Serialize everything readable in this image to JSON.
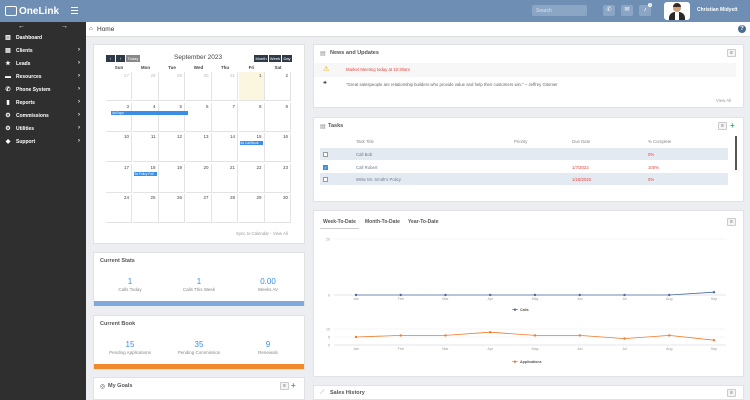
{
  "app": {
    "name": "OneLink"
  },
  "topbar": {
    "search_placeholder": "Search",
    "notification_count": "1",
    "user_name": "Christian Midyett"
  },
  "sidebar": {
    "items": [
      {
        "label": "Dashboard",
        "icon": "dashboard-icon",
        "glyph": "▥"
      },
      {
        "label": "Clients",
        "icon": "clients-icon",
        "glyph": "▤"
      },
      {
        "label": "Leads",
        "icon": "star-icon",
        "glyph": "★"
      },
      {
        "label": "Resources",
        "icon": "folder-icon",
        "glyph": "▬"
      },
      {
        "label": "Phone System",
        "icon": "phone-icon",
        "glyph": "✆"
      },
      {
        "label": "Reports",
        "icon": "reports-icon",
        "glyph": "▮"
      },
      {
        "label": "Commissions",
        "icon": "commissions-icon",
        "glyph": "⚙"
      },
      {
        "label": "Utilities",
        "icon": "utilities-icon",
        "glyph": "⚙"
      },
      {
        "label": "Support",
        "icon": "support-icon",
        "glyph": "◆"
      }
    ]
  },
  "breadcrumb": {
    "home": "Home"
  },
  "calendar": {
    "today_label": "Today",
    "month_label": "September 2023",
    "views": [
      "Month",
      "Week",
      "Day"
    ],
    "weekdays": [
      "Sun",
      "Mon",
      "Tue",
      "Wed",
      "Thu",
      "Fri",
      "Sat"
    ],
    "weeks": [
      [
        [
          "27",
          true
        ],
        [
          "28",
          true
        ],
        [
          "29",
          true
        ],
        [
          "30",
          true
        ],
        [
          "31",
          true
        ],
        [
          "1",
          false
        ],
        [
          "2",
          false
        ]
      ],
      [
        [
          "3",
          false
        ],
        [
          "4",
          false
        ],
        [
          "5",
          false
        ],
        [
          "6",
          false
        ],
        [
          "7",
          false
        ],
        [
          "8",
          false
        ],
        [
          "9",
          false
        ]
      ],
      [
        [
          "10",
          false
        ],
        [
          "11",
          false
        ],
        [
          "12",
          false
        ],
        [
          "13",
          false
        ],
        [
          "14",
          false
        ],
        [
          "15",
          false
        ],
        [
          "16",
          false
        ]
      ],
      [
        [
          "17",
          false
        ],
        [
          "18",
          false
        ],
        [
          "19",
          false
        ],
        [
          "20",
          false
        ],
        [
          "21",
          false
        ],
        [
          "22",
          false
        ],
        [
          "23",
          false
        ]
      ],
      [
        [
          "24",
          false
        ],
        [
          "25",
          false
        ],
        [
          "26",
          false
        ],
        [
          "27",
          false
        ],
        [
          "28",
          false
        ],
        [
          "29",
          false
        ],
        [
          "30",
          false
        ]
      ]
    ],
    "events": [
      {
        "label": "4a Expo"
      },
      {
        "label": "6a Call Book"
      },
      {
        "label": "9a Policy Foll"
      }
    ],
    "sync_label": "Sync to Calendar",
    "view_all": "View All"
  },
  "current_stats": {
    "title": "Current Stats",
    "items": [
      {
        "value": "1",
        "label": "Calls Today"
      },
      {
        "value": "1",
        "label": "Calls This Week"
      },
      {
        "value": "0.00",
        "label": "Weeks AV"
      }
    ],
    "bar_color": "#7ea9d8"
  },
  "current_book": {
    "title": "Current Book",
    "items": [
      {
        "value": "15",
        "label": "Pending Applications"
      },
      {
        "value": "35",
        "label": "Pending Commission"
      },
      {
        "value": "9",
        "label": "Renewals"
      }
    ],
    "bar_color": "#f08a2c"
  },
  "my_goals": {
    "title": "My Goals"
  },
  "news": {
    "title": "News and Updates",
    "items": [
      {
        "text": "Market Meeting today at 10:30am",
        "color": "#e8453c",
        "icon": "warning-icon",
        "glyph": "⚠"
      },
      {
        "text": "\"Great salespeople are relationship builders who provide value and help their customers win.\" – Jeffrey Gitomer",
        "color": "#666666",
        "icon": "quote-icon",
        "glyph": "❝"
      }
    ],
    "view_all": "View All"
  },
  "tasks": {
    "title": "Tasks",
    "columns": [
      "Task Title",
      "Priority",
      "Due Date",
      "% Complete"
    ],
    "rows": [
      {
        "title": "Call Bob",
        "priority": "",
        "due": "",
        "complete": "0%",
        "checked": false
      },
      {
        "title": "Call Robert",
        "priority": "",
        "due": "1/7/2022",
        "complete": "100%",
        "checked": true
      },
      {
        "title": "Write Mr. Smith's Policy",
        "priority": "",
        "due": "1/18/2022",
        "complete": "0%",
        "checked": false
      }
    ]
  },
  "performance": {
    "tabs": [
      "Week-To-Date",
      "Month-To-Date",
      "Year-To-Date"
    ]
  },
  "chart_data": [
    {
      "type": "line",
      "x": [
        "Jan",
        "Feb",
        "Mar",
        "Apr",
        "May",
        "Jun",
        "Jul",
        "Aug",
        "Sep"
      ],
      "series": [
        {
          "name": "Calls",
          "values": [
            0,
            0,
            0,
            0,
            0,
            0,
            0,
            0,
            1
          ]
        }
      ],
      "ylim": [
        0,
        20
      ],
      "yticks": [
        "20",
        "0"
      ],
      "color": "#4a6a9e"
    },
    {
      "type": "line",
      "x": [
        "Jan",
        "Feb",
        "Mar",
        "Apr",
        "May",
        "Jun",
        "Jul",
        "Aug",
        "Sep"
      ],
      "series": [
        {
          "name": "Applications",
          "values": [
            5,
            6,
            6,
            8,
            6,
            6,
            4,
            6,
            3
          ]
        }
      ],
      "ylim": [
        0,
        10
      ],
      "yticks": [
        "10",
        "5",
        "0"
      ],
      "color": "#f07a2c"
    }
  ],
  "sales_history": {
    "title": "Sales History"
  }
}
